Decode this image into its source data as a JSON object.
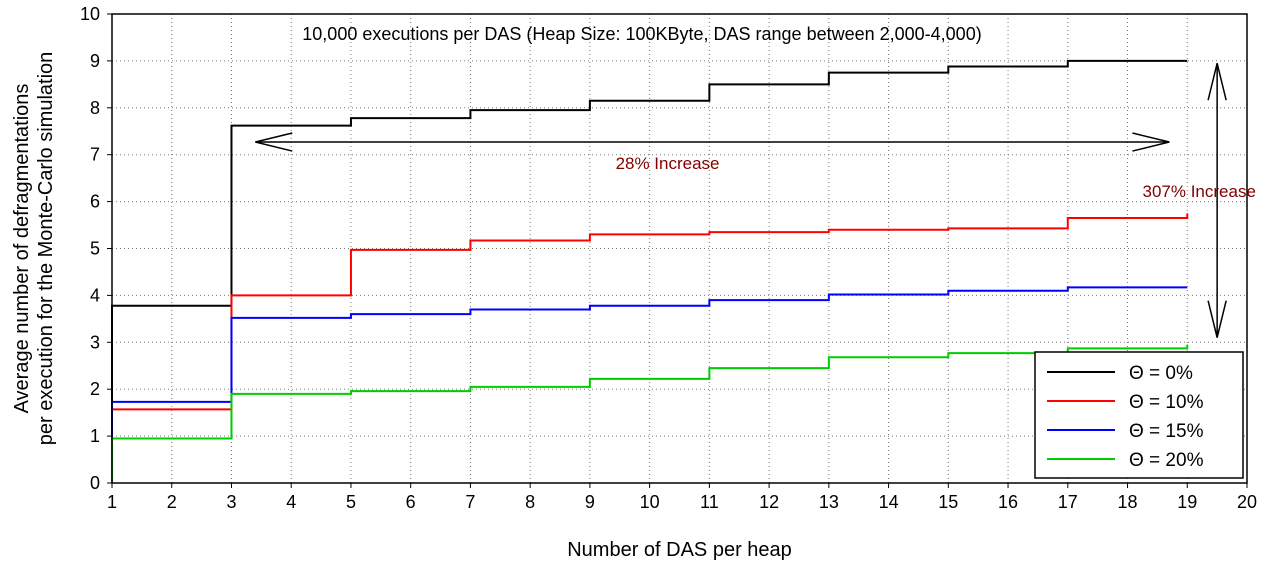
{
  "chart_data": {
    "type": "line",
    "title": "10,000 executions per DAS (Heap Size: 100KByte, DAS range between 2,000-4,000)",
    "xlabel": "Number of DAS per heap",
    "ylabel_line1": "Average number of defragmentations",
    "ylabel_line2": "per execution for the Monte-Carlo simulation",
    "xlim": [
      1,
      20
    ],
    "ylim": [
      0,
      10
    ],
    "x_ticks": [
      1,
      2,
      3,
      4,
      5,
      6,
      7,
      8,
      9,
      10,
      11,
      12,
      13,
      14,
      15,
      16,
      17,
      18,
      19,
      20
    ],
    "y_ticks": [
      0,
      1,
      2,
      3,
      4,
      5,
      6,
      7,
      8,
      9,
      10
    ],
    "grid": true,
    "legend_position": "bottom-right",
    "series": [
      {
        "name": "Θ = 0%",
        "color": "#000000",
        "x": [
          1,
          3,
          5,
          7,
          9,
          11,
          13,
          15,
          17,
          19
        ],
        "y": [
          3.78,
          7.62,
          7.78,
          7.95,
          8.15,
          8.5,
          8.75,
          8.88,
          9.0,
          9.0
        ]
      },
      {
        "name": "Θ = 10%",
        "color": "#ff0000",
        "x": [
          1,
          3,
          5,
          7,
          9,
          11,
          13,
          15,
          17,
          19
        ],
        "y": [
          1.57,
          4.0,
          4.97,
          5.17,
          5.3,
          5.35,
          5.4,
          5.43,
          5.65,
          5.75
        ]
      },
      {
        "name": "Θ = 15%",
        "color": "#0000ff",
        "x": [
          1,
          3,
          5,
          7,
          9,
          11,
          13,
          15,
          17,
          19
        ],
        "y": [
          1.73,
          3.52,
          3.6,
          3.7,
          3.78,
          3.9,
          4.02,
          4.1,
          4.17,
          4.17
        ]
      },
      {
        "name": "Θ = 20%",
        "color": "#00cc00",
        "x": [
          1,
          3,
          5,
          7,
          9,
          11,
          13,
          15,
          17,
          19
        ],
        "y": [
          0.95,
          1.9,
          1.96,
          2.05,
          2.22,
          2.45,
          2.68,
          2.77,
          2.87,
          2.95
        ]
      }
    ],
    "annotations": [
      {
        "text": "28% Increase",
        "color": "#800000",
        "x": 10.3,
        "y": 6.7
      },
      {
        "text": "307% Increase",
        "color": "#800000",
        "x": 19.2,
        "y": 6.1
      }
    ],
    "arrows": [
      {
        "x1": 3.4,
        "y1": 7.27,
        "x2": 18.7,
        "y2": 7.27
      },
      {
        "x1": 19.5,
        "y1": 8.95,
        "x2": 19.5,
        "y2": 3.1
      }
    ]
  }
}
